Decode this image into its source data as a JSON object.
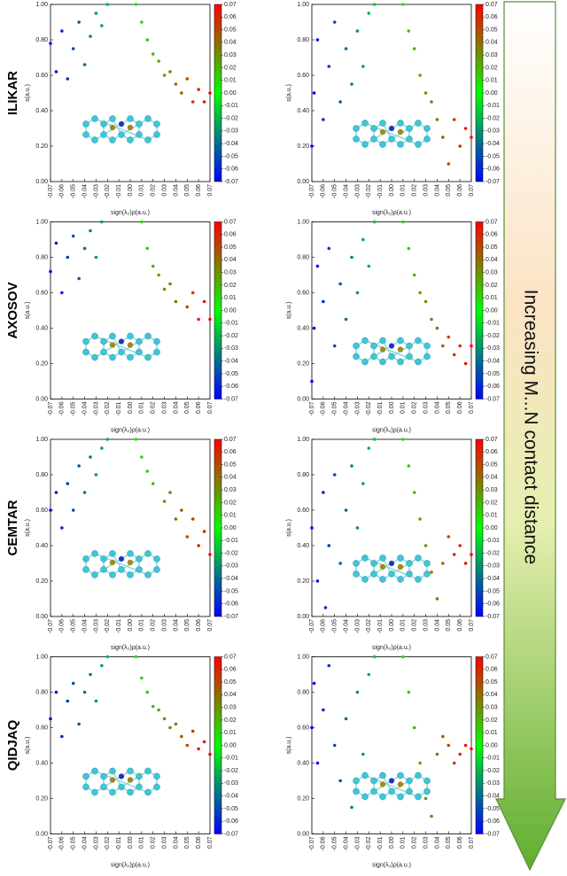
{
  "row_labels": [
    "ILIKAR",
    "AXOSOV",
    "CEMTAR",
    "QIDJAQ"
  ],
  "annotation": "Increasing M...N contact distance",
  "chart_data": [
    {
      "type": "scatter",
      "xlabel": "sign(λ₂)ρ(a.u.)",
      "ylabel": "s(a.u.)",
      "xlim": [
        -0.07,
        0.07
      ],
      "ylim": [
        0,
        1
      ],
      "clim": [
        -0.07,
        0.07
      ],
      "colormap": [
        "#0000ff",
        "#00ff00",
        "#ff0000"
      ],
      "xticks": [
        -0.07,
        -0.06,
        -0.05,
        -0.04,
        -0.03,
        -0.02,
        -0.01,
        {
          "value": 0,
          "label": "0.00"
        },
        0.01,
        0.02,
        0.03,
        0.04,
        0.05,
        0.06,
        0.07
      ],
      "yticks": [
        {
          "value": 0,
          "label": "0.00"
        },
        {
          "value": 0.2,
          "label": "0.20"
        },
        {
          "value": 0.4,
          "label": "0.40"
        },
        {
          "value": 0.6,
          "label": "0.60"
        },
        {
          "value": 0.8,
          "label": "0.80"
        },
        {
          "value": 1,
          "label": "1.00"
        }
      ],
      "cticks": [
        -0.07,
        -0.06,
        -0.05,
        -0.04,
        -0.03,
        -0.02,
        -0.01,
        {
          "value": 0,
          "label": "0.00"
        },
        0.01,
        0.02,
        0.03,
        0.04,
        0.05,
        0.06,
        0.07
      ],
      "x": [
        -0.07,
        -0.065,
        -0.06,
        -0.055,
        -0.05,
        -0.045,
        -0.04,
        -0.035,
        -0.03,
        -0.025,
        -0.02,
        0.005,
        0.01,
        0.015,
        0.02,
        0.025,
        0.03,
        0.035,
        0.04,
        0.045,
        0.05,
        0.055,
        0.06,
        0.065,
        0.07
      ],
      "y": [
        0.78,
        0.62,
        0.85,
        0.58,
        0.75,
        0.9,
        0.66,
        0.82,
        0.95,
        0.88,
        1.0,
        1.0,
        0.9,
        0.8,
        0.72,
        0.68,
        0.6,
        0.62,
        0.55,
        0.5,
        0.58,
        0.45,
        0.52,
        0.45,
        0.5
      ]
    },
    {
      "type": "scatter",
      "xlabel": "sign(λ₂)ρ(a.u.)",
      "ylabel": "s(a.u.)",
      "xlim": [
        -0.07,
        0.07
      ],
      "ylim": [
        0,
        1
      ],
      "clim": [
        -0.07,
        0.07
      ],
      "colormap": [
        "#0000ff",
        "#00ff00",
        "#ff0000"
      ],
      "xticks": [
        -0.07,
        -0.06,
        -0.05,
        -0.04,
        -0.03,
        -0.02,
        -0.01,
        {
          "value": 0,
          "label": "0.00"
        },
        0.01,
        0.02,
        0.03,
        0.04,
        0.05,
        0.06,
        0.07
      ],
      "yticks": [
        {
          "value": 0,
          "label": "0.00"
        },
        {
          "value": 0.2,
          "label": "0.20"
        },
        {
          "value": 0.4,
          "label": "0.40"
        },
        {
          "value": 0.6,
          "label": "0.60"
        },
        {
          "value": 0.8,
          "label": "0.80"
        },
        {
          "value": 1,
          "label": "1.00"
        }
      ],
      "cticks": [
        -0.07,
        -0.06,
        -0.05,
        -0.04,
        -0.03,
        -0.02,
        -0.01,
        {
          "value": 0,
          "label": "0.00"
        },
        0.01,
        0.02,
        0.03,
        0.04,
        0.05,
        0.06,
        0.07
      ],
      "x": [
        -0.07,
        -0.068,
        -0.065,
        -0.06,
        -0.055,
        -0.05,
        -0.045,
        -0.04,
        -0.035,
        -0.03,
        -0.025,
        -0.02,
        -0.015,
        0.01,
        0.015,
        0.02,
        0.025,
        0.03,
        0.035,
        0.04,
        0.045,
        0.05,
        0.055,
        0.06,
        0.065,
        0.07
      ],
      "y": [
        0.2,
        0.5,
        0.8,
        0.35,
        0.65,
        0.9,
        0.45,
        0.75,
        0.55,
        0.85,
        0.65,
        0.95,
        1.0,
        1.0,
        0.85,
        0.75,
        0.6,
        0.5,
        0.45,
        0.35,
        0.25,
        0.1,
        0.35,
        0.2,
        0.3,
        0.25
      ]
    },
    {
      "type": "scatter",
      "xlabel": "sign(λ₂)ρ(a.u.)",
      "ylabel": "s(a.u.)",
      "xlim": [
        -0.07,
        0.07
      ],
      "ylim": [
        0,
        1
      ],
      "clim": [
        -0.07,
        0.07
      ],
      "colormap": [
        "#0000ff",
        "#00ff00",
        "#ff0000"
      ],
      "xticks": [
        -0.07,
        -0.06,
        -0.05,
        -0.04,
        -0.03,
        -0.02,
        -0.01,
        {
          "value": 0,
          "label": "0.00"
        },
        0.01,
        0.02,
        0.03,
        0.04,
        0.05,
        0.06,
        0.07
      ],
      "yticks": [
        {
          "value": 0,
          "label": "0.00"
        },
        {
          "value": 0.2,
          "label": "0.20"
        },
        {
          "value": 0.4,
          "label": "0.40"
        },
        {
          "value": 0.6,
          "label": "0.60"
        },
        {
          "value": 0.8,
          "label": "0.80"
        },
        {
          "value": 1,
          "label": "1.00"
        }
      ],
      "cticks": [
        -0.07,
        -0.06,
        -0.05,
        -0.04,
        -0.03,
        -0.02,
        -0.01,
        {
          "value": 0,
          "label": "0.00"
        },
        0.01,
        0.02,
        0.03,
        0.04,
        0.05,
        0.06,
        0.07
      ],
      "x": [
        -0.07,
        -0.065,
        -0.06,
        -0.055,
        -0.05,
        -0.045,
        -0.04,
        -0.035,
        -0.03,
        -0.025,
        0.01,
        0.015,
        0.02,
        0.025,
        0.03,
        0.035,
        0.04,
        0.05,
        0.055,
        0.06,
        0.065,
        0.07
      ],
      "y": [
        0.72,
        0.88,
        0.6,
        0.8,
        0.92,
        0.68,
        0.85,
        0.95,
        0.8,
        1.0,
        1.0,
        0.85,
        0.75,
        0.7,
        0.62,
        0.65,
        0.55,
        0.52,
        0.6,
        0.45,
        0.55,
        0.45
      ]
    },
    {
      "type": "scatter",
      "xlabel": "sign(λ₂)ρ(a.u.)",
      "ylabel": "s(a.u.)",
      "xlim": [
        -0.07,
        0.07
      ],
      "ylim": [
        0,
        1
      ],
      "clim": [
        -0.07,
        0.07
      ],
      "colormap": [
        "#0000ff",
        "#00ff00",
        "#ff0000"
      ],
      "xticks": [
        -0.07,
        -0.06,
        -0.05,
        -0.04,
        -0.03,
        -0.02,
        -0.01,
        {
          "value": 0,
          "label": "0.00"
        },
        0.01,
        0.02,
        0.03,
        0.04,
        0.05,
        0.06,
        0.07
      ],
      "yticks": [
        {
          "value": 0,
          "label": "0.00"
        },
        {
          "value": 0.2,
          "label": "0.20"
        },
        {
          "value": 0.4,
          "label": "0.40"
        },
        {
          "value": 0.6,
          "label": "0.60"
        },
        {
          "value": 0.8,
          "label": "0.80"
        },
        {
          "value": 1,
          "label": "1.00"
        }
      ],
      "cticks": [
        -0.07,
        -0.06,
        -0.05,
        -0.04,
        -0.03,
        -0.02,
        -0.01,
        {
          "value": 0,
          "label": "0.00"
        },
        0.01,
        0.02,
        0.03,
        0.04,
        0.05,
        0.06,
        0.07
      ],
      "x": [
        -0.07,
        -0.068,
        -0.065,
        -0.06,
        -0.055,
        -0.05,
        -0.045,
        -0.04,
        -0.035,
        -0.03,
        -0.025,
        -0.02,
        -0.015,
        0.01,
        0.015,
        0.02,
        0.025,
        0.03,
        0.035,
        0.04,
        0.045,
        0.05,
        0.055,
        0.06,
        0.065,
        0.07
      ],
      "y": [
        0.1,
        0.4,
        0.75,
        0.55,
        0.85,
        0.3,
        0.65,
        0.45,
        0.8,
        0.6,
        0.9,
        0.75,
        1.0,
        1.0,
        0.85,
        0.7,
        0.6,
        0.55,
        0.45,
        0.4,
        0.3,
        0.35,
        0.25,
        0.3,
        0.2,
        0.3
      ]
    },
    {
      "type": "scatter",
      "xlabel": "sign(λ₂)ρ(a.u.)",
      "ylabel": "s(a.u.)",
      "xlim": [
        -0.07,
        0.07
      ],
      "ylim": [
        0,
        1
      ],
      "clim": [
        -0.07,
        0.07
      ],
      "colormap": [
        "#0000ff",
        "#00ff00",
        "#ff0000"
      ],
      "xticks": [
        -0.07,
        -0.06,
        -0.05,
        -0.04,
        -0.03,
        -0.02,
        -0.01,
        {
          "value": 0,
          "label": "0.00"
        },
        0.01,
        0.02,
        0.03,
        0.04,
        0.05,
        0.06,
        0.07
      ],
      "yticks": [
        {
          "value": 0,
          "label": "0.00"
        },
        {
          "value": 0.2,
          "label": "0.20"
        },
        {
          "value": 0.4,
          "label": "0.40"
        },
        {
          "value": 0.6,
          "label": "0.60"
        },
        {
          "value": 0.8,
          "label": "0.80"
        },
        {
          "value": 1,
          "label": "1.00"
        }
      ],
      "cticks": [
        -0.07,
        -0.06,
        -0.05,
        -0.04,
        -0.03,
        -0.02,
        -0.01,
        {
          "value": 0,
          "label": "0.00"
        },
        0.01,
        0.02,
        0.03,
        0.04,
        0.05,
        0.06,
        0.07
      ],
      "x": [
        -0.07,
        -0.065,
        -0.06,
        -0.055,
        -0.05,
        -0.045,
        -0.04,
        -0.035,
        -0.03,
        -0.025,
        -0.02,
        0.005,
        0.01,
        0.015,
        0.02,
        0.03,
        0.035,
        0.04,
        0.045,
        0.05,
        0.055,
        0.06,
        0.065,
        0.07
      ],
      "y": [
        0.6,
        0.7,
        0.5,
        0.75,
        0.6,
        0.85,
        0.7,
        0.9,
        0.8,
        0.95,
        1.0,
        1.0,
        0.9,
        0.82,
        0.75,
        0.65,
        0.7,
        0.55,
        0.6,
        0.45,
        0.55,
        0.4,
        0.48,
        0.35
      ]
    },
    {
      "type": "scatter",
      "xlabel": "sign(λ₂)ρ(a.u.)",
      "ylabel": "s(a.u.)",
      "xlim": [
        -0.07,
        0.07
      ],
      "ylim": [
        0,
        1
      ],
      "clim": [
        -0.07,
        0.07
      ],
      "colormap": [
        "#0000ff",
        "#00ff00",
        "#ff0000"
      ],
      "xticks": [
        -0.07,
        -0.06,
        -0.05,
        -0.04,
        -0.03,
        -0.02,
        -0.01,
        {
          "value": 0,
          "label": "0.00"
        },
        0.01,
        0.02,
        0.03,
        0.04,
        0.05,
        0.06,
        0.07
      ],
      "yticks": [
        {
          "value": 0,
          "label": "0.00"
        },
        {
          "value": 0.2,
          "label": "0.20"
        },
        {
          "value": 0.4,
          "label": "0.40"
        },
        {
          "value": 0.6,
          "label": "0.60"
        },
        {
          "value": 0.8,
          "label": "0.80"
        },
        {
          "value": 1,
          "label": "1.00"
        }
      ],
      "cticks": [
        -0.07,
        -0.06,
        -0.05,
        -0.04,
        -0.03,
        -0.02,
        -0.01,
        {
          "value": 0,
          "label": "0.00"
        },
        0.01,
        0.02,
        0.03,
        0.04,
        0.05,
        0.06,
        0.07
      ],
      "x": [
        -0.07,
        -0.065,
        -0.06,
        -0.058,
        -0.055,
        -0.05,
        -0.045,
        -0.04,
        -0.035,
        -0.03,
        -0.025,
        -0.02,
        -0.015,
        0.01,
        0.015,
        0.02,
        0.025,
        0.03,
        0.035,
        0.04,
        0.045,
        0.05,
        0.055,
        0.06,
        0.065,
        0.07
      ],
      "y": [
        0.5,
        0.2,
        0.7,
        0.05,
        0.4,
        0.8,
        0.3,
        0.6,
        0.85,
        0.5,
        0.75,
        0.95,
        1.0,
        1.0,
        0.85,
        0.7,
        0.55,
        0.4,
        0.25,
        0.1,
        0.3,
        0.45,
        0.35,
        0.4,
        0.3,
        0.35
      ]
    },
    {
      "type": "scatter",
      "xlabel": "sign(λ₂)ρ(a.u.)",
      "ylabel": "s(a.u.)",
      "xlim": [
        -0.07,
        0.07
      ],
      "ylim": [
        0,
        1
      ],
      "clim": [
        -0.07,
        0.07
      ],
      "colormap": [
        "#0000ff",
        "#00ff00",
        "#ff0000"
      ],
      "xticks": [
        -0.07,
        -0.06,
        -0.05,
        -0.04,
        -0.03,
        -0.02,
        -0.01,
        {
          "value": 0,
          "label": "0.00"
        },
        0.01,
        0.02,
        0.03,
        0.04,
        0.05,
        0.06,
        0.07
      ],
      "yticks": [
        {
          "value": 0,
          "label": "0.00"
        },
        {
          "value": 0.2,
          "label": "0.20"
        },
        {
          "value": 0.4,
          "label": "0.40"
        },
        {
          "value": 0.6,
          "label": "0.60"
        },
        {
          "value": 0.8,
          "label": "0.80"
        },
        {
          "value": 1,
          "label": "1.00"
        }
      ],
      "cticks": [
        -0.07,
        -0.06,
        -0.05,
        -0.04,
        -0.03,
        -0.02,
        -0.01,
        {
          "value": 0,
          "label": "0.00"
        },
        0.01,
        0.02,
        0.03,
        0.04,
        0.05,
        0.06,
        0.07
      ],
      "x": [
        -0.07,
        -0.065,
        -0.06,
        -0.055,
        -0.05,
        -0.045,
        -0.04,
        -0.035,
        -0.03,
        -0.025,
        -0.02,
        0.005,
        0.01,
        0.015,
        0.02,
        0.025,
        0.03,
        0.035,
        0.04,
        0.045,
        0.05,
        0.055,
        0.06,
        0.065,
        0.07
      ],
      "y": [
        0.65,
        0.8,
        0.55,
        0.75,
        0.85,
        0.62,
        0.8,
        0.9,
        0.75,
        0.95,
        1.0,
        1.0,
        0.88,
        0.8,
        0.72,
        0.7,
        0.65,
        0.6,
        0.62,
        0.55,
        0.5,
        0.58,
        0.48,
        0.52,
        0.45
      ]
    },
    {
      "type": "scatter",
      "xlabel": "sign(λ₂)ρ(a.u.)",
      "ylabel": "s(a.u.)",
      "xlim": [
        -0.07,
        0.07
      ],
      "ylim": [
        0,
        1
      ],
      "clim": [
        -0.07,
        0.07
      ],
      "colormap": [
        "#0000ff",
        "#00ff00",
        "#ff0000"
      ],
      "xticks": [
        -0.07,
        -0.06,
        -0.05,
        -0.04,
        -0.03,
        -0.02,
        -0.01,
        {
          "value": 0,
          "label": "0.00"
        },
        0.01,
        0.02,
        0.03,
        0.04,
        0.05,
        0.06,
        0.07
      ],
      "yticks": [
        {
          "value": 0,
          "label": "0.00"
        },
        {
          "value": 0.2,
          "label": "0.20"
        },
        {
          "value": 0.4,
          "label": "0.40"
        },
        {
          "value": 0.6,
          "label": "0.60"
        },
        {
          "value": 0.8,
          "label": "0.80"
        },
        {
          "value": 1,
          "label": "1.00"
        }
      ],
      "cticks": [
        -0.07,
        -0.06,
        -0.05,
        -0.04,
        -0.03,
        -0.02,
        -0.01,
        {
          "value": 0,
          "label": "0.00"
        },
        0.01,
        0.02,
        0.03,
        0.04,
        0.05,
        0.06,
        0.07
      ],
      "x": [
        -0.07,
        -0.068,
        -0.065,
        -0.06,
        -0.055,
        -0.05,
        -0.045,
        -0.04,
        -0.035,
        -0.03,
        -0.025,
        -0.02,
        -0.015,
        0.01,
        0.015,
        0.02,
        0.025,
        0.03,
        0.035,
        0.04,
        0.045,
        0.05,
        0.055,
        0.06,
        0.065,
        0.07
      ],
      "y": [
        0.6,
        0.85,
        0.4,
        0.7,
        0.95,
        0.5,
        0.3,
        0.65,
        0.15,
        0.8,
        0.45,
        0.9,
        1.0,
        1.0,
        0.8,
        0.6,
        0.4,
        0.2,
        0.1,
        0.45,
        0.55,
        0.5,
        0.4,
        0.45,
        0.5,
        0.48
      ]
    }
  ]
}
